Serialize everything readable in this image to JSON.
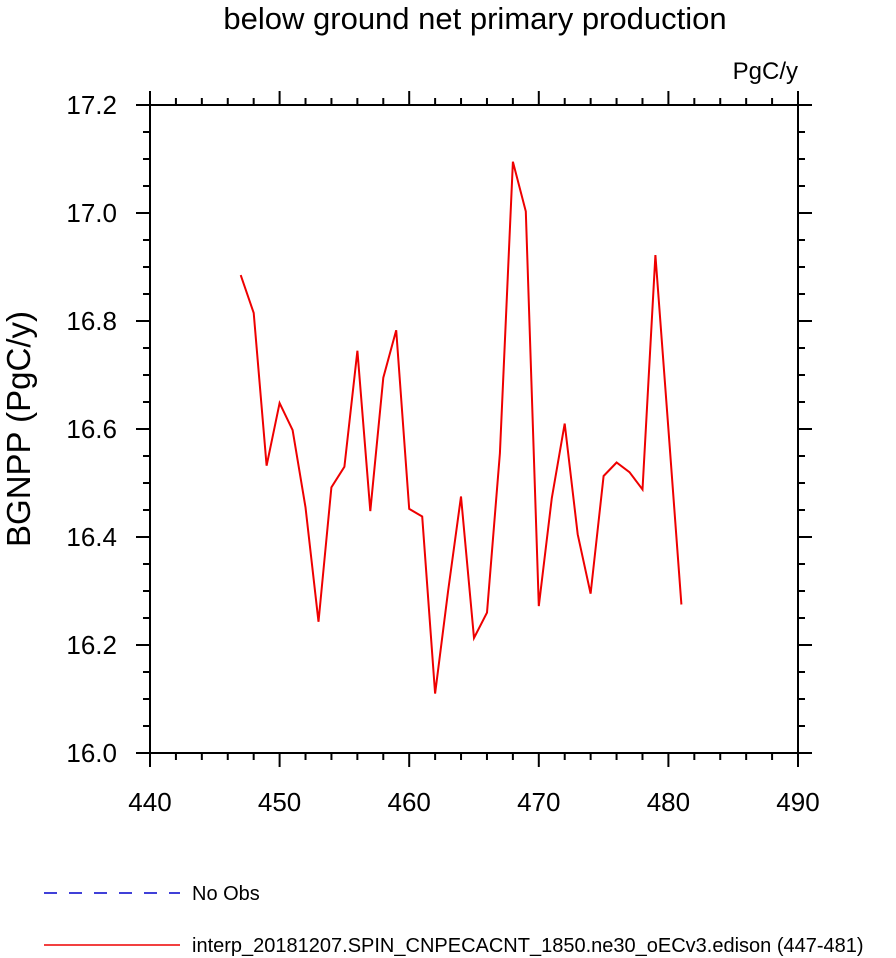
{
  "chart_data": {
    "type": "line",
    "title": "below ground net primary production",
    "units": "PgC/y",
    "ylabel": "BGNPP  (PgC/y)",
    "xlabel": "",
    "xlim": [
      440,
      490
    ],
    "ylim": [
      16.0,
      17.2
    ],
    "x_ticks": [
      440,
      450,
      460,
      470,
      480,
      490
    ],
    "x_tick_labels": [
      "440",
      "450",
      "460",
      "470",
      "480",
      "490"
    ],
    "y_ticks": [
      16.0,
      16.2,
      16.4,
      16.6,
      16.8,
      17.0,
      17.2
    ],
    "y_tick_labels": [
      "16.0",
      "16.2",
      "16.4",
      "16.6",
      "16.8",
      "17.0",
      "17.2"
    ],
    "grid": false,
    "legend_placement": "bottom",
    "legend": [
      {
        "label": "No Obs",
        "color": "#0000cc",
        "style": "dashed"
      },
      {
        "label": "interp_20181207.SPIN_CNPECACNT_1850.ne30_oECv3.edison (447-481)",
        "color": "#ee0000",
        "style": "solid"
      }
    ],
    "series": [
      {
        "color": "#ee0000",
        "x": [
          447,
          448,
          449,
          450,
          451,
          452,
          453,
          454,
          455,
          456,
          457,
          458,
          459,
          460,
          461,
          462,
          463,
          464,
          465,
          466,
          467,
          468,
          469,
          470,
          471,
          472,
          473,
          474,
          475,
          476,
          477,
          478,
          479,
          480,
          481
        ],
        "y": [
          16.885,
          16.815,
          16.532,
          16.648,
          16.598,
          16.455,
          16.243,
          16.492,
          16.53,
          16.745,
          16.448,
          16.695,
          16.783,
          16.452,
          16.438,
          16.11,
          16.3,
          16.475,
          16.213,
          16.26,
          16.555,
          17.095,
          17.003,
          16.272,
          16.472,
          16.61,
          16.405,
          16.295,
          16.513,
          16.538,
          16.52,
          16.488,
          16.922,
          16.6,
          16.275
        ]
      }
    ]
  }
}
